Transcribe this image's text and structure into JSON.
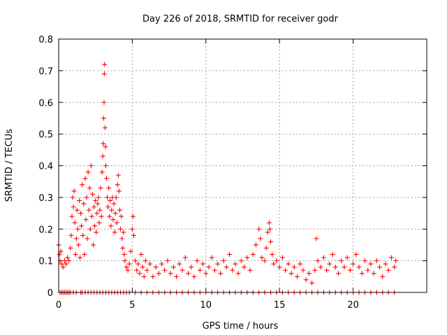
{
  "chart_data": {
    "type": "scatter",
    "title": "Day 226 of 2018, SRMTID for receiver godr",
    "xlabel": "GPS time / hours",
    "ylabel": "SRMTID / TECUs",
    "xlim": [
      0,
      25
    ],
    "ylim": [
      0,
      0.8
    ],
    "xticks": [
      0,
      5,
      10,
      15,
      20
    ],
    "xtick_labels": [
      "0",
      "5",
      "10",
      "15",
      "20"
    ],
    "yticks": [
      0,
      0.1,
      0.2,
      0.3,
      0.4,
      0.5,
      0.6,
      0.7,
      0.8
    ],
    "ytick_labels": [
      "0",
      "0.1",
      "0.2",
      "0.3",
      "0.4",
      "0.5",
      "0.6",
      "0.7",
      "0.8"
    ],
    "grid": true,
    "marker": "+",
    "series": [
      {
        "name": "SRMTID",
        "color": "#ff0000",
        "points": [
          [
            0.0,
            0.15
          ],
          [
            0.05,
            0.12
          ],
          [
            0.1,
            0.1
          ],
          [
            0.15,
            0.13
          ],
          [
            0.2,
            0.09
          ],
          [
            0.3,
            0.08
          ],
          [
            0.4,
            0.1
          ],
          [
            0.5,
            0.09
          ],
          [
            0.6,
            0.11
          ],
          [
            0.7,
            0.1
          ],
          [
            0.8,
            0.14
          ],
          [
            0.85,
            0.18
          ],
          [
            0.9,
            0.24
          ],
          [
            0.95,
            0.3
          ],
          [
            1.0,
            0.27
          ],
          [
            1.05,
            0.32
          ],
          [
            1.1,
            0.22
          ],
          [
            1.15,
            0.12
          ],
          [
            1.2,
            0.17
          ],
          [
            1.25,
            0.26
          ],
          [
            1.3,
            0.2
          ],
          [
            1.35,
            0.15
          ],
          [
            1.4,
            0.29
          ],
          [
            1.45,
            0.11
          ],
          [
            1.5,
            0.25
          ],
          [
            1.55,
            0.21
          ],
          [
            1.6,
            0.34
          ],
          [
            1.65,
            0.18
          ],
          [
            1.7,
            0.28
          ],
          [
            1.75,
            0.12
          ],
          [
            1.8,
            0.36
          ],
          [
            1.85,
            0.23
          ],
          [
            1.9,
            0.3
          ],
          [
            1.95,
            0.17
          ],
          [
            2.0,
            0.38
          ],
          [
            2.05,
            0.26
          ],
          [
            2.1,
            0.33
          ],
          [
            2.15,
            0.2
          ],
          [
            2.2,
            0.4
          ],
          [
            2.25,
            0.24
          ],
          [
            2.3,
            0.31
          ],
          [
            2.35,
            0.15
          ],
          [
            2.4,
            0.27
          ],
          [
            2.45,
            0.21
          ],
          [
            2.5,
            0.29
          ],
          [
            2.55,
            0.19
          ],
          [
            2.6,
            0.25
          ],
          [
            2.65,
            0.28
          ],
          [
            2.7,
            0.3
          ],
          [
            2.75,
            0.22
          ],
          [
            2.8,
            0.26
          ],
          [
            2.85,
            0.33
          ],
          [
            2.9,
            0.24
          ],
          [
            2.95,
            0.38
          ],
          [
            3.0,
            0.43
          ],
          [
            3.02,
            0.47
          ],
          [
            3.05,
            0.55
          ],
          [
            3.08,
            0.6
          ],
          [
            3.1,
            0.69
          ],
          [
            3.12,
            0.72
          ],
          [
            3.15,
            0.52
          ],
          [
            3.18,
            0.46
          ],
          [
            3.2,
            0.4
          ],
          [
            3.25,
            0.36
          ],
          [
            3.3,
            0.3
          ],
          [
            3.35,
            0.27
          ],
          [
            3.4,
            0.33
          ],
          [
            3.45,
            0.24
          ],
          [
            3.5,
            0.29
          ],
          [
            3.55,
            0.21
          ],
          [
            3.6,
            0.26
          ],
          [
            3.65,
            0.3
          ],
          [
            3.7,
            0.23
          ],
          [
            3.75,
            0.28
          ],
          [
            3.8,
            0.19
          ],
          [
            3.85,
            0.25
          ],
          [
            3.9,
            0.3
          ],
          [
            3.95,
            0.22
          ],
          [
            4.0,
            0.34
          ],
          [
            4.05,
            0.37
          ],
          [
            4.1,
            0.32
          ],
          [
            4.15,
            0.26
          ],
          [
            4.2,
            0.2
          ],
          [
            4.25,
            0.24
          ],
          [
            4.3,
            0.17
          ],
          [
            4.35,
            0.14
          ],
          [
            4.4,
            0.19
          ],
          [
            4.45,
            0.12
          ],
          [
            4.5,
            0.1
          ],
          [
            4.6,
            0.08
          ],
          [
            4.7,
            0.07
          ],
          [
            4.8,
            0.09
          ],
          [
            4.9,
            0.13
          ],
          [
            5.0,
            0.2
          ],
          [
            5.05,
            0.24
          ],
          [
            5.1,
            0.18
          ],
          [
            5.2,
            0.1
          ],
          [
            5.3,
            0.07
          ],
          [
            5.4,
            0.09
          ],
          [
            5.5,
            0.06
          ],
          [
            5.6,
            0.12
          ],
          [
            5.7,
            0.08
          ],
          [
            5.8,
            0.05
          ],
          [
            5.9,
            0.1
          ],
          [
            6.0,
            0.07
          ],
          [
            6.2,
            0.09
          ],
          [
            6.4,
            0.05
          ],
          [
            6.6,
            0.08
          ],
          [
            6.8,
            0.06
          ],
          [
            7.0,
            0.09
          ],
          [
            7.2,
            0.07
          ],
          [
            7.4,
            0.1
          ],
          [
            7.6,
            0.06
          ],
          [
            7.8,
            0.08
          ],
          [
            8.0,
            0.05
          ],
          [
            8.2,
            0.09
          ],
          [
            8.4,
            0.07
          ],
          [
            8.6,
            0.11
          ],
          [
            8.8,
            0.06
          ],
          [
            9.0,
            0.08
          ],
          [
            9.2,
            0.05
          ],
          [
            9.4,
            0.1
          ],
          [
            9.6,
            0.07
          ],
          [
            9.8,
            0.09
          ],
          [
            10.0,
            0.06
          ],
          [
            10.2,
            0.08
          ],
          [
            10.4,
            0.11
          ],
          [
            10.6,
            0.07
          ],
          [
            10.8,
            0.09
          ],
          [
            11.0,
            0.06
          ],
          [
            11.2,
            0.1
          ],
          [
            11.4,
            0.08
          ],
          [
            11.6,
            0.12
          ],
          [
            11.8,
            0.07
          ],
          [
            12.0,
            0.09
          ],
          [
            12.2,
            0.06
          ],
          [
            12.4,
            0.1
          ],
          [
            12.6,
            0.08
          ],
          [
            12.8,
            0.11
          ],
          [
            13.0,
            0.07
          ],
          [
            13.2,
            0.12
          ],
          [
            13.4,
            0.15
          ],
          [
            13.6,
            0.2
          ],
          [
            13.7,
            0.17
          ],
          [
            13.8,
            0.11
          ],
          [
            14.0,
            0.1
          ],
          [
            14.1,
            0.14
          ],
          [
            14.2,
            0.19
          ],
          [
            14.3,
            0.22
          ],
          [
            14.35,
            0.2
          ],
          [
            14.4,
            0.16
          ],
          [
            14.5,
            0.12
          ],
          [
            14.6,
            0.09
          ],
          [
            14.8,
            0.1
          ],
          [
            15.0,
            0.08
          ],
          [
            15.2,
            0.11
          ],
          [
            15.4,
            0.07
          ],
          [
            15.6,
            0.09
          ],
          [
            15.8,
            0.06
          ],
          [
            16.0,
            0.08
          ],
          [
            16.2,
            0.05
          ],
          [
            16.4,
            0.09
          ],
          [
            16.6,
            0.07
          ],
          [
            16.8,
            0.04
          ],
          [
            17.0,
            0.06
          ],
          [
            17.2,
            0.03
          ],
          [
            17.4,
            0.07
          ],
          [
            17.5,
            0.17
          ],
          [
            17.6,
            0.1
          ],
          [
            17.8,
            0.08
          ],
          [
            18.0,
            0.11
          ],
          [
            18.2,
            0.07
          ],
          [
            18.4,
            0.09
          ],
          [
            18.6,
            0.12
          ],
          [
            18.8,
            0.08
          ],
          [
            19.0,
            0.06
          ],
          [
            19.2,
            0.1
          ],
          [
            19.4,
            0.08
          ],
          [
            19.6,
            0.11
          ],
          [
            19.8,
            0.07
          ],
          [
            20.0,
            0.09
          ],
          [
            20.2,
            0.12
          ],
          [
            20.4,
            0.08
          ],
          [
            20.6,
            0.06
          ],
          [
            20.8,
            0.1
          ],
          [
            21.0,
            0.07
          ],
          [
            21.2,
            0.09
          ],
          [
            21.4,
            0.06
          ],
          [
            21.6,
            0.1
          ],
          [
            21.8,
            0.08
          ],
          [
            22.0,
            0.05
          ],
          [
            22.2,
            0.09
          ],
          [
            22.4,
            0.07
          ],
          [
            22.6,
            0.11
          ],
          [
            22.8,
            0.08
          ],
          [
            22.9,
            0.1
          ]
        ],
        "zero_points_x": [
          0.1,
          0.2,
          0.3,
          0.4,
          0.5,
          0.6,
          0.7,
          0.8,
          1.0,
          1.2,
          1.5,
          1.6,
          1.8,
          2.0,
          2.2,
          2.4,
          2.6,
          2.8,
          3.0,
          3.2,
          3.4,
          3.6,
          3.8,
          4.0,
          4.2,
          4.4,
          4.6,
          4.8,
          5.2,
          5.6,
          6.0,
          6.4,
          6.8,
          7.2,
          7.6,
          8.0,
          8.4,
          8.8,
          9.2,
          9.6,
          10.0,
          10.4,
          10.8,
          11.2,
          11.6,
          12.0,
          12.4,
          12.8,
          13.2,
          13.6,
          14.0,
          14.4,
          14.8,
          15.2,
          15.6,
          16.0,
          16.4,
          16.8,
          17.2,
          17.6,
          18.0,
          18.4,
          18.8,
          19.2,
          19.6,
          20.0,
          20.4,
          20.8,
          21.2,
          21.6,
          22.0,
          22.4,
          22.8
        ]
      }
    ]
  }
}
